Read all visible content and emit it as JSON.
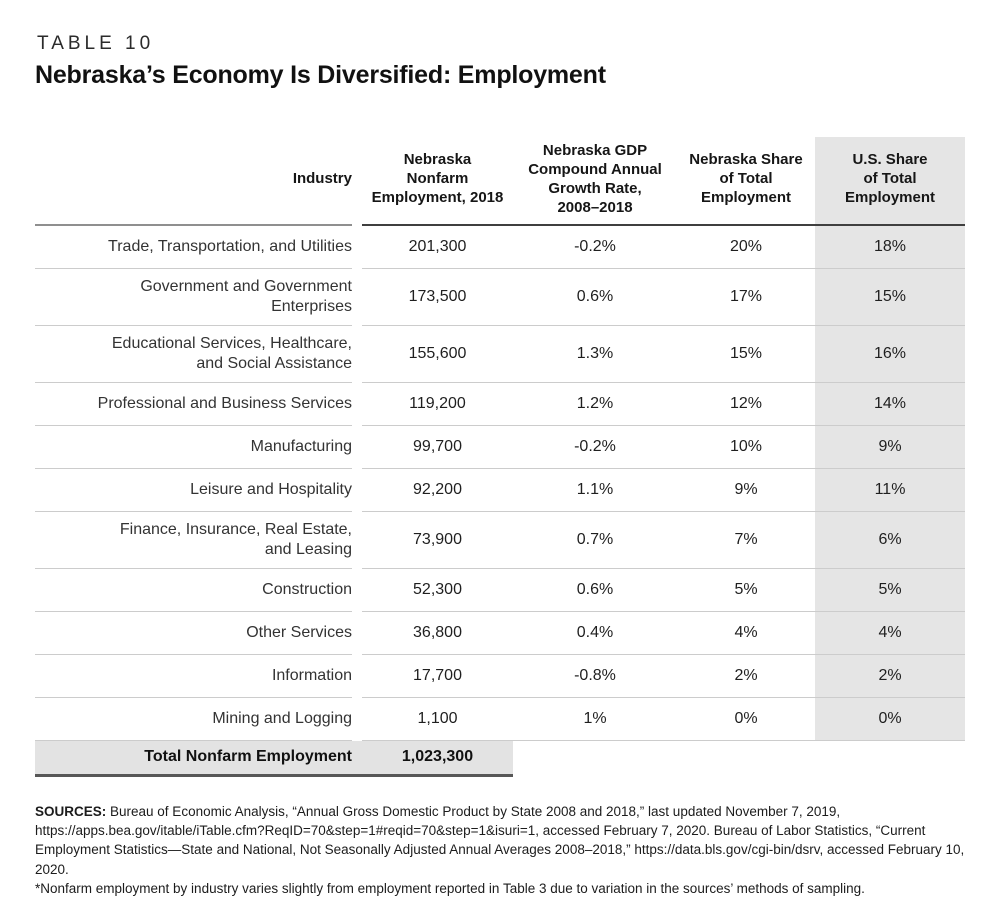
{
  "page": {
    "kicker": "TABLE 10",
    "title": "Nebraska’s Economy Is Diversified: Employment"
  },
  "table": {
    "columns": [
      {
        "label": "Industry"
      },
      {
        "label": "Nebraska\nNonfarm\nEmployment, 2018"
      },
      {
        "label": "Nebraska GDP\nCompound Annual\nGrowth Rate,\n2008–2018"
      },
      {
        "label": "Nebraska Share\nof Total\nEmployment"
      },
      {
        "label": "U.S. Share\nof Total\nEmployment"
      }
    ],
    "rows": [
      {
        "industry": "Trade, Transportation, and Utilities",
        "employment": "201,300",
        "growth": "-0.2%",
        "ne_share": "20%",
        "us_share": "18%"
      },
      {
        "industry": "Government and Government\nEnterprises",
        "employment": "173,500",
        "growth": "0.6%",
        "ne_share": "17%",
        "us_share": "15%"
      },
      {
        "industry": "Educational Services, Healthcare,\nand Social Assistance",
        "employment": "155,600",
        "growth": "1.3%",
        "ne_share": "15%",
        "us_share": "16%"
      },
      {
        "industry": "Professional and Business Services",
        "employment": "119,200",
        "growth": "1.2%",
        "ne_share": "12%",
        "us_share": "14%"
      },
      {
        "industry": "Manufacturing",
        "employment": "99,700",
        "growth": "-0.2%",
        "ne_share": "10%",
        "us_share": "9%"
      },
      {
        "industry": "Leisure and Hospitality",
        "employment": "92,200",
        "growth": "1.1%",
        "ne_share": "9%",
        "us_share": "11%"
      },
      {
        "industry": "Finance, Insurance, Real Estate,\nand Leasing",
        "employment": "73,900",
        "growth": "0.7%",
        "ne_share": "7%",
        "us_share": "6%"
      },
      {
        "industry": "Construction",
        "employment": "52,300",
        "growth": "0.6%",
        "ne_share": "5%",
        "us_share": "5%"
      },
      {
        "industry": "Other Services",
        "employment": "36,800",
        "growth": "0.4%",
        "ne_share": "4%",
        "us_share": "4%"
      },
      {
        "industry": "Information",
        "employment": "17,700",
        "growth": "-0.8%",
        "ne_share": "2%",
        "us_share": "2%"
      },
      {
        "industry": "Mining and Logging",
        "employment": "1,100",
        "growth": "1%",
        "ne_share": "0%",
        "us_share": "0%"
      }
    ],
    "total": {
      "label": "Total Nonfarm Employment",
      "value": "1,023,300"
    }
  },
  "footer": {
    "sources_label": "SOURCES:",
    "sources_text": " Bureau of Economic Analysis, “Annual Gross Domestic Product by State 2008 and 2018,” last updated November 7, 2019, https://apps.bea.gov/itable/iTable.cfm?ReqID=70&step=1#reqid=70&step=1&isuri=1, accessed February 7, 2020. Bureau of Labor Statistics, “Current Employment Statistics—State and National, Not Seasonally Adjusted Annual Averages 2008–2018,” https://data.bls.gov/cgi-bin/dsrv, accessed February 10, 2020.",
    "note_text": "*Nonfarm employment by industry varies slightly from employment reported in Table 3 due to variation in the sources’ methods of sampling."
  },
  "colors": {
    "shaded_column": "#e5e5e5",
    "total_row_background": "#e3e3e3",
    "row_divider": "#cccccc",
    "header_rule_dark": "#3f3f3f",
    "header_rule_light": "#8f8f8f",
    "text": "#1f1f1f"
  }
}
